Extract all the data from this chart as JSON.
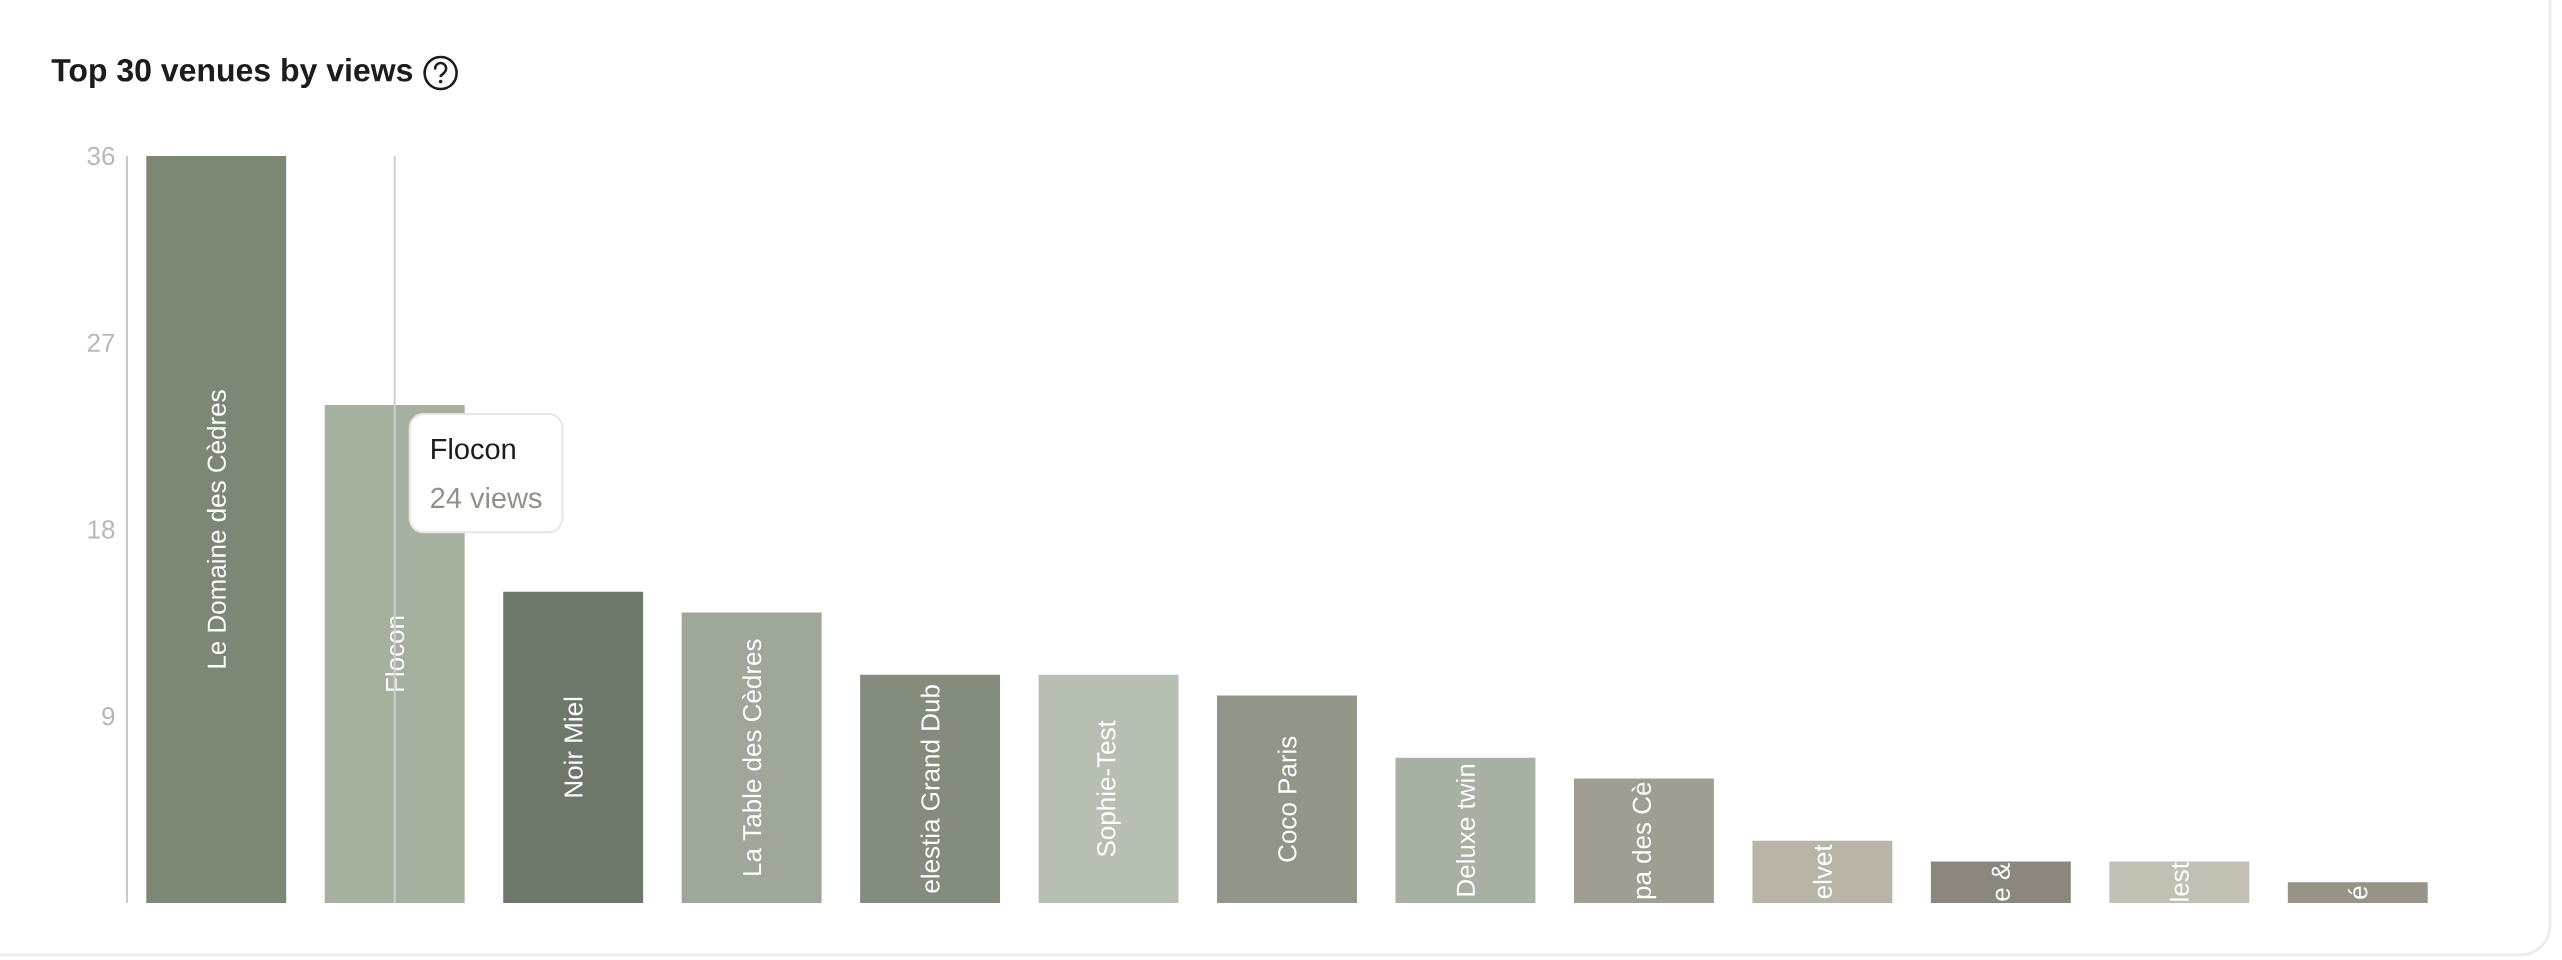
{
  "chart_data": {
    "type": "bar",
    "title": "Top 30 venues by views",
    "categories": [
      "Le Domaine des Cèdres",
      "Flocon",
      "Noir Miel",
      "La Table des Cèdres",
      "elestia Grand Dub",
      "Sophie-Test",
      "Coco Paris",
      "Deluxe twin",
      "pa des Cè",
      "elvet",
      "e &",
      "lest",
      "é"
    ],
    "values": [
      36,
      24,
      15,
      14,
      11,
      11,
      10,
      7,
      6,
      3,
      2,
      2,
      1
    ],
    "value_labels": [
      null,
      "24 views",
      null,
      null,
      null,
      null,
      null,
      null,
      null,
      null,
      null,
      null,
      null
    ],
    "colors": [
      "#7d8776",
      "#a6b09f",
      "#6e786a",
      "#9fa798",
      "#838c7d",
      "#b6bfb2",
      "#909789",
      "#a7b0a2",
      "#a09e93",
      "#b8b5a8",
      "#8b877c",
      "#c2bfb3",
      "#979387"
    ],
    "ylim": [
      0,
      36
    ],
    "yticks": [
      9,
      18,
      27,
      36
    ],
    "annotations": [
      {
        "text": "Flocon",
        "x": "Flocon",
        "y": 24
      }
    ]
  }
}
